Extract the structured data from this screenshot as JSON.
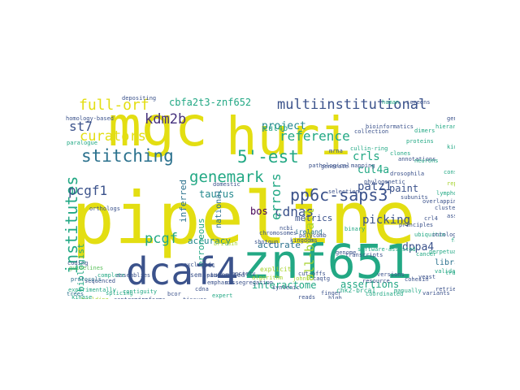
{
  "palette": {
    "yellow": "#e3de12",
    "lime": "#a6d32e",
    "green": "#5cc05c",
    "teal": "#22a884",
    "cyan": "#23898e",
    "blue": "#2c728e",
    "slate": "#3b528b",
    "indigo": "#46327e",
    "purple": "#440154"
  },
  "words": [
    {
      "text": "pipeline",
      "color": "yellow"
    },
    {
      "text": "mgc",
      "color": "yellow"
    },
    {
      "text": "huri",
      "color": "yellow"
    },
    {
      "text": "znf651",
      "color": "teal"
    },
    {
      "text": "dcaf4",
      "color": "slate"
    },
    {
      "text": "pp6c-saps3",
      "color": "slate"
    },
    {
      "text": "multiinstitutional",
      "color": "slate"
    },
    {
      "text": "stitching",
      "color": "blue"
    },
    {
      "text": "5'-est",
      "color": "teal"
    },
    {
      "text": "institutes",
      "color": "teal"
    },
    {
      "text": "genemark",
      "color": "teal"
    },
    {
      "text": "full-orf",
      "color": "yellow"
    },
    {
      "text": "curators",
      "color": "yellow"
    },
    {
      "text": "kdm2b",
      "color": "indigo"
    },
    {
      "text": "st7",
      "color": "slate"
    },
    {
      "text": "pcgf1",
      "color": "slate"
    },
    {
      "text": "pcgf",
      "color": "teal"
    },
    {
      "text": "cdnas",
      "color": "slate"
    },
    {
      "text": "errors",
      "color": "teal"
    },
    {
      "text": "all-by-all",
      "color": "lime"
    },
    {
      "text": "reference",
      "color": "teal"
    },
    {
      "text": "cbfa2t3-znf652",
      "color": "teal"
    },
    {
      "text": "project",
      "color": "cyan"
    },
    {
      "text": "cul4b",
      "color": "teal"
    },
    {
      "text": "taurus",
      "color": "cyan"
    },
    {
      "text": "bos",
      "color": "purple"
    },
    {
      "text": "accuracy",
      "color": "cyan"
    },
    {
      "text": "accurate",
      "color": "blue"
    },
    {
      "text": "interactome",
      "color": "teal"
    },
    {
      "text": "assertions",
      "color": "teal"
    },
    {
      "text": "dppa4",
      "color": "slate"
    },
    {
      "text": "picking",
      "color": "slate"
    },
    {
      "text": "patz1",
      "color": "slate"
    },
    {
      "text": "cul4a",
      "color": "teal"
    },
    {
      "text": "crls",
      "color": "teal"
    },
    {
      "text": "paint",
      "color": "slate"
    },
    {
      "text": "metrics",
      "color": "slate"
    },
    {
      "text": "erroneous",
      "color": "teal"
    },
    {
      "text": "inferred",
      "color": "blue"
    },
    {
      "text": "national",
      "color": "blue"
    },
    {
      "text": "biologist",
      "color": "teal"
    },
    {
      "text": "libraries",
      "color": "blue"
    },
    {
      "text": "chk2-brca1",
      "color": "teal"
    },
    {
      "text": "shotgun",
      "color": "slate"
    },
    {
      "text": "ireland",
      "color": "blue"
    },
    {
      "text": "kingdoms",
      "color": "slate"
    },
    {
      "text": "prc1",
      "color": "slate"
    },
    {
      "text": "cut-offs",
      "color": "slate"
    },
    {
      "text": "complete",
      "color": "teal"
    },
    {
      "text": "sequenced",
      "color": "slate"
    },
    {
      "text": "assemblies",
      "color": "slate"
    },
    {
      "text": "contiguity",
      "color": "teal"
    },
    {
      "text": "semi-automated",
      "color": "slate"
    },
    {
      "text": "guidelines",
      "color": "green"
    },
    {
      "text": "expert",
      "color": "teal"
    },
    {
      "text": "explicit",
      "color": "lime"
    },
    {
      "text": "reads",
      "color": "slate"
    },
    {
      "text": "caqtg",
      "color": "slate"
    },
    {
      "text": "finger",
      "color": "slate"
    },
    {
      "text": "ncbi",
      "color": "slate"
    },
    {
      "text": "genome",
      "color": "slate"
    },
    {
      "text": "selection",
      "color": "slate"
    },
    {
      "text": "software-assisted",
      "color": "teal"
    },
    {
      "text": "perpetual",
      "color": "teal"
    },
    {
      "text": "missegregation",
      "color": "slate"
    },
    {
      "text": "cullin-ring",
      "color": "teal"
    },
    {
      "text": "domestic",
      "color": "slate"
    },
    {
      "text": "collection",
      "color": "slate"
    },
    {
      "text": "mapping",
      "color": "slate"
    },
    {
      "text": "clones",
      "color": "teal"
    },
    {
      "text": "generate",
      "color": "slate"
    },
    {
      "text": "principles",
      "color": "slate"
    },
    {
      "text": "versions",
      "color": "slate"
    },
    {
      "text": "phylogenetic",
      "color": "slate"
    },
    {
      "text": "polycomb",
      "color": "slate"
    },
    {
      "text": "binary",
      "color": "teal"
    },
    {
      "text": "homology-based",
      "color": "slate"
    },
    {
      "text": "experimentally",
      "color": "teal"
    },
    {
      "text": "trees",
      "color": "blue"
    },
    {
      "text": "protocols",
      "color": "blue"
    },
    {
      "text": "paralogue",
      "color": "teal"
    },
    {
      "text": "depositing",
      "color": "slate"
    },
    {
      "text": "emphasis",
      "color": "slate"
    },
    {
      "text": "britain",
      "color": "lime"
    },
    {
      "text": "bcor",
      "color": "slate"
    },
    {
      "text": "society",
      "color": "slate"
    },
    {
      "text": "excluded",
      "color": "slate"
    },
    {
      "text": "spindles",
      "color": "slate"
    },
    {
      "text": "manually",
      "color": "teal"
    },
    {
      "text": "resource",
      "color": "slate"
    },
    {
      "text": "high",
      "color": "slate"
    },
    {
      "text": "dimers",
      "color": "teal"
    },
    {
      "text": "constraints",
      "color": "teal"
    },
    {
      "text": "program",
      "color": "slate"
    },
    {
      "text": "validation",
      "color": "teal"
    },
    {
      "text": "algorithm",
      "color": "lime"
    },
    {
      "text": "subunits",
      "color": "slate"
    },
    {
      "text": "cancer",
      "color": "teal"
    },
    {
      "text": "hierarchical",
      "color": "teal"
    },
    {
      "text": "tissues",
      "color": "slate"
    },
    {
      "text": "proteins",
      "color": "teal"
    },
    {
      "text": "kidney",
      "color": "teal"
    },
    {
      "text": "clusters",
      "color": "slate"
    },
    {
      "text": "annotations",
      "color": "slate"
    },
    {
      "text": "ubiquitin",
      "color": "teal"
    },
    {
      "text": "yeast",
      "color": "slate"
    },
    {
      "text": "human",
      "color": "teal"
    },
    {
      "text": "screens",
      "color": "slate"
    },
    {
      "text": "drosophila",
      "color": "slate"
    },
    {
      "text": "mrna",
      "color": "slate"
    },
    {
      "text": "pathological",
      "color": "slate"
    },
    {
      "text": "transcripts",
      "color": "slate"
    },
    {
      "text": "orthologs",
      "color": "slate"
    },
    {
      "text": "crl4",
      "color": "slate"
    },
    {
      "text": "transcriptome",
      "color": "teal"
    },
    {
      "text": "neurons",
      "color": "teal"
    },
    {
      "text": "building",
      "color": "lime"
    },
    {
      "text": "lymphoma",
      "color": "teal"
    },
    {
      "text": "cohesin",
      "color": "slate"
    },
    {
      "text": "ontology",
      "color": "slate"
    },
    {
      "text": "retrieving",
      "color": "slate"
    },
    {
      "text": "johns",
      "color": "lime"
    },
    {
      "text": "cdna",
      "color": "slate"
    },
    {
      "text": "coding",
      "color": "slate"
    },
    {
      "text": "splicing",
      "color": "teal"
    },
    {
      "text": "variants",
      "color": "slate"
    },
    {
      "text": "coordinated",
      "color": "teal"
    },
    {
      "text": "overlapping",
      "color": "slate"
    },
    {
      "text": "syntenic",
      "color": "slate"
    },
    {
      "text": "kinase",
      "color": "teal"
    },
    {
      "text": "bioinformatics",
      "color": "slate"
    },
    {
      "text": "centromere",
      "color": "slate"
    },
    {
      "text": "repeats",
      "color": "lime"
    },
    {
      "text": "assays",
      "color": "slate"
    },
    {
      "text": "families",
      "color": "teal"
    },
    {
      "text": "isoforms",
      "color": "slate"
    },
    {
      "text": "genes",
      "color": "slate"
    },
    {
      "text": "chromosomes",
      "color": "slate"
    }
  ]
}
